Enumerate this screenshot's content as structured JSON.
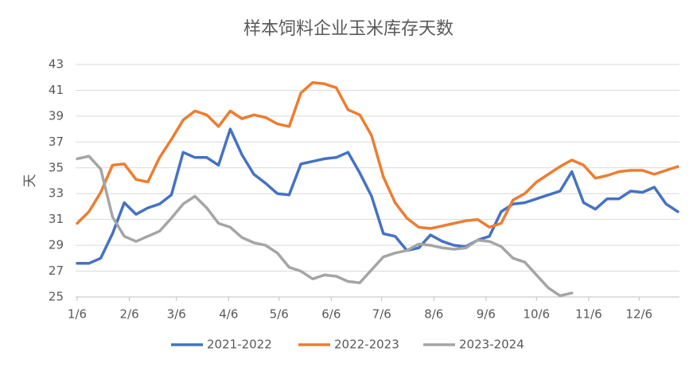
{
  "chart_data": {
    "type": "line",
    "title": "样本饲料企业玉米库存天数",
    "y_label": "天",
    "x": [
      0,
      7,
      14,
      21,
      28,
      35,
      42,
      49,
      56,
      63,
      70,
      77,
      84,
      91,
      98,
      105,
      112,
      119,
      126,
      133,
      140,
      147,
      154,
      161,
      168,
      175,
      182,
      189,
      196,
      203,
      210,
      217,
      224,
      231,
      238,
      245,
      252,
      259,
      266,
      273,
      280,
      287,
      294,
      301,
      308,
      315,
      322,
      329,
      336,
      343,
      350,
      357
    ],
    "xlim": [
      0,
      358
    ],
    "xticks": [
      {
        "value": 0,
        "label": "1/6"
      },
      {
        "value": 31,
        "label": "2/6"
      },
      {
        "value": 59,
        "label": "3/6"
      },
      {
        "value": 90,
        "label": "4/6"
      },
      {
        "value": 120,
        "label": "5/6"
      },
      {
        "value": 151,
        "label": "6/6"
      },
      {
        "value": 181,
        "label": "7/6"
      },
      {
        "value": 212,
        "label": "8/6"
      },
      {
        "value": 243,
        "label": "9/6"
      },
      {
        "value": 273,
        "label": "10/6"
      },
      {
        "value": 304,
        "label": "11/6"
      },
      {
        "value": 334,
        "label": "12/6"
      }
    ],
    "ylim": [
      25,
      43
    ],
    "yticks": [
      25,
      27,
      29,
      31,
      33,
      35,
      37,
      39,
      41,
      43
    ],
    "grid": true,
    "legend": "bottom",
    "series": [
      {
        "name": "2021-2022",
        "color": "#4472c4",
        "values": [
          27.6,
          27.6,
          28.0,
          29.9,
          32.3,
          31.4,
          31.9,
          32.2,
          32.9,
          36.2,
          35.8,
          35.8,
          35.2,
          38.0,
          36.0,
          34.5,
          33.8,
          33.0,
          32.9,
          35.3,
          35.5,
          35.7,
          35.8,
          36.2,
          34.6,
          32.8,
          29.9,
          29.7,
          28.6,
          28.8,
          29.8,
          29.3,
          29.0,
          28.9,
          29.4,
          29.7,
          31.6,
          32.2,
          32.3,
          32.6,
          32.9,
          33.2,
          34.7,
          32.3,
          31.8,
          32.6,
          32.6,
          33.2,
          33.1,
          33.5,
          32.2,
          31.6
        ]
      },
      {
        "name": "2022-2023",
        "color": "#ed7d31",
        "values": [
          30.7,
          31.6,
          33.1,
          35.2,
          35.3,
          34.1,
          33.9,
          35.8,
          37.2,
          38.7,
          39.4,
          39.1,
          38.2,
          39.4,
          38.8,
          39.1,
          38.9,
          38.4,
          38.2,
          40.8,
          41.6,
          41.5,
          41.2,
          39.5,
          39.1,
          37.5,
          34.3,
          32.3,
          31.1,
          30.4,
          30.3,
          30.5,
          30.7,
          30.9,
          31.0,
          30.4,
          30.7,
          32.5,
          33.0,
          33.9,
          34.5,
          35.1,
          35.6,
          35.2,
          34.2,
          34.4,
          34.7,
          34.8,
          34.8,
          34.5,
          34.8,
          35.1
        ]
      },
      {
        "name": "2023-2024",
        "color": "#a5a5a5",
        "values": [
          35.7,
          35.9,
          34.9,
          31.2,
          29.7,
          29.3,
          29.7,
          30.1,
          31.1,
          32.2,
          32.8,
          31.9,
          30.7,
          30.4,
          29.6,
          29.2,
          29.0,
          28.4,
          27.3,
          27.0,
          26.4,
          26.7,
          26.6,
          26.2,
          26.1,
          27.1,
          28.1,
          28.4,
          28.6,
          29.1,
          29.0,
          28.8,
          28.7,
          28.8,
          29.4,
          29.3,
          28.9,
          28.0,
          27.7,
          26.7,
          25.7,
          25.1,
          25.3,
          null,
          null,
          null,
          null,
          null,
          null,
          null,
          null,
          null
        ]
      }
    ]
  }
}
